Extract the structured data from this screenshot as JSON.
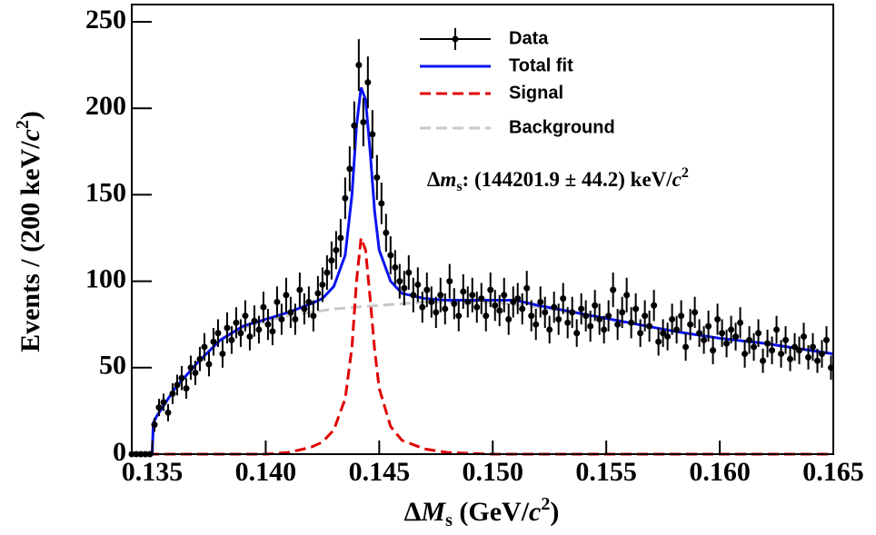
{
  "chart_data": {
    "type": "line",
    "xlim": [
      0.1341,
      0.165
    ],
    "ylim": [
      0,
      260
    ],
    "xticks": [
      0.135,
      {
        "value": 0.14,
        "label": "0.140"
      },
      0.145,
      {
        "value": 0.15,
        "label": "0.150"
      },
      0.155,
      {
        "value": 0.16,
        "label": "0.160"
      },
      0.165
    ],
    "yticks": [
      0,
      50,
      100,
      150,
      200,
      250
    ],
    "x_label": [
      "Δ",
      "M",
      "s",
      " (GeV/",
      "c",
      "2",
      ")"
    ],
    "y_label": [
      "Events / (200 keV/",
      "c",
      "2",
      ")"
    ],
    "annotation": [
      "Δ",
      "m",
      "s",
      ": (144201.9  ± 44.2) keV/",
      "c",
      "2"
    ],
    "legend": "top-right",
    "series": [
      {
        "name": "Data",
        "color": "#000000",
        "marker": "errorbar",
        "x": [
          0.1341,
          0.1343,
          0.1345,
          0.1347,
          0.1349,
          0.1351,
          0.1353,
          0.1355,
          0.1357,
          0.1359,
          0.1361,
          0.1363,
          0.1365,
          0.1367,
          0.1369,
          0.1371,
          0.1373,
          0.1375,
          0.1377,
          0.1379,
          0.1381,
          0.1383,
          0.1385,
          0.1387,
          0.1389,
          0.1391,
          0.1393,
          0.1395,
          0.1397,
          0.1399,
          0.1401,
          0.1403,
          0.1405,
          0.1407,
          0.1409,
          0.1411,
          0.1413,
          0.1415,
          0.1417,
          0.1419,
          0.1421,
          0.1423,
          0.1425,
          0.1427,
          0.1429,
          0.1431,
          0.1433,
          0.1435,
          0.1437,
          0.1439,
          0.1441,
          0.1443,
          0.1445,
          0.1447,
          0.1449,
          0.1451,
          0.1453,
          0.1455,
          0.1457,
          0.1459,
          0.1461,
          0.1463,
          0.1465,
          0.1467,
          0.1469,
          0.1471,
          0.1473,
          0.1475,
          0.1477,
          0.1479,
          0.1481,
          0.1483,
          0.1485,
          0.1487,
          0.1489,
          0.1491,
          0.1493,
          0.1495,
          0.1497,
          0.1499,
          0.1501,
          0.1503,
          0.1505,
          0.1507,
          0.1509,
          0.1511,
          0.1513,
          0.1515,
          0.1517,
          0.1519,
          0.1521,
          0.1523,
          0.1525,
          0.1527,
          0.1529,
          0.1531,
          0.1533,
          0.1535,
          0.1537,
          0.1539,
          0.1541,
          0.1543,
          0.1545,
          0.1547,
          0.1549,
          0.1551,
          0.1553,
          0.1555,
          0.1557,
          0.1559,
          0.1561,
          0.1563,
          0.1565,
          0.1567,
          0.1569,
          0.1571,
          0.1573,
          0.1575,
          0.1577,
          0.1579,
          0.1581,
          0.1583,
          0.1585,
          0.1587,
          0.1589,
          0.1591,
          0.1593,
          0.1595,
          0.1597,
          0.1599,
          0.1601,
          0.1603,
          0.1605,
          0.1607,
          0.1609,
          0.1611,
          0.1613,
          0.1615,
          0.1617,
          0.1619,
          0.1621,
          0.1623,
          0.1625,
          0.1627,
          0.1629,
          0.1631,
          0.1633,
          0.1635,
          0.1637,
          0.1639,
          0.1641,
          0.1643,
          0.1645,
          0.1647,
          0.1649
        ],
        "values": [
          0,
          0,
          0,
          0,
          0,
          17,
          27,
          30,
          24,
          35,
          40,
          44,
          38,
          50,
          47,
          55,
          62,
          52,
          65,
          70,
          58,
          73,
          66,
          76,
          70,
          80,
          68,
          77,
          72,
          85,
          75,
          71,
          88,
          78,
          92,
          82,
          78,
          95,
          84,
          88,
          80,
          93,
          98,
          105,
          112,
          118,
          125,
          148,
          165,
          190,
          225,
          192,
          215,
          185,
          160,
          145,
          128,
          115,
          108,
          100,
          96,
          105,
          92,
          98,
          85,
          95,
          88,
          82,
          92,
          84,
          100,
          87,
          80,
          94,
          88,
          92,
          85,
          90,
          80,
          95,
          86,
          83,
          92,
          78,
          88,
          90,
          84,
          96,
          80,
          75,
          88,
          82,
          72,
          85,
          78,
          90,
          76,
          82,
          70,
          84,
          80,
          74,
          86,
          78,
          72,
          80,
          95,
          75,
          82,
          92,
          76,
          84,
          70,
          80,
          74,
          86,
          65,
          70,
          68,
          78,
          72,
          80,
          62,
          75,
          82,
          70,
          66,
          74,
          60,
          78,
          70,
          64,
          72,
          68,
          76,
          58,
          66,
          62,
          70,
          54,
          64,
          60,
          72,
          58,
          66,
          55,
          62,
          60,
          68,
          56,
          62,
          54,
          58,
          66,
          50
        ],
        "errors": [
          0,
          0,
          0,
          0,
          0,
          4,
          5,
          5,
          5,
          6,
          6,
          7,
          6,
          7,
          7,
          7,
          8,
          7,
          8,
          8,
          8,
          9,
          8,
          9,
          8,
          9,
          8,
          9,
          8,
          9,
          9,
          8,
          9,
          9,
          10,
          9,
          9,
          10,
          9,
          9,
          9,
          10,
          10,
          10,
          11,
          11,
          11,
          12,
          13,
          14,
          15,
          14,
          15,
          14,
          13,
          12,
          11,
          11,
          10,
          10,
          10,
          10,
          10,
          10,
          9,
          10,
          9,
          9,
          10,
          9,
          10,
          9,
          9,
          10,
          9,
          10,
          9,
          9,
          9,
          10,
          9,
          9,
          10,
          9,
          9,
          9,
          9,
          10,
          9,
          9,
          9,
          9,
          8,
          9,
          9,
          9,
          9,
          9,
          8,
          9,
          9,
          9,
          9,
          9,
          8,
          9,
          10,
          9,
          9,
          10,
          9,
          9,
          8,
          9,
          9,
          9,
          8,
          8,
          8,
          9,
          8,
          9,
          8,
          9,
          9,
          8,
          8,
          9,
          8,
          9,
          8,
          8,
          8,
          8,
          9,
          8,
          8,
          8,
          8,
          7,
          8,
          8,
          8,
          8,
          8,
          7,
          8,
          8,
          8,
          7,
          8,
          7,
          8,
          8,
          7
        ]
      },
      {
        "name": "Total fit",
        "color": "#0a14f0",
        "dashed": false,
        "x": [
          0.1341,
          0.1349,
          0.135,
          0.13505,
          0.1352,
          0.136,
          0.137,
          0.138,
          0.139,
          0.14,
          0.141,
          0.142,
          0.1425,
          0.143,
          0.1435,
          0.1438,
          0.144,
          0.1442,
          0.1444,
          0.1446,
          0.1448,
          0.145,
          0.1455,
          0.146,
          0.147,
          0.148,
          0.15,
          0.151,
          0.152,
          0.154,
          0.156,
          0.158,
          0.16,
          0.162,
          0.165
        ],
        "values": [
          0,
          0,
          0,
          18,
          22,
          38,
          53,
          66,
          74,
          78,
          82,
          87,
          90,
          97,
          115,
          150,
          190,
          212,
          205,
          175,
          140,
          118,
          100,
          93,
          90,
          89,
          89,
          89,
          86,
          81,
          76,
          71,
          67,
          64,
          58
        ]
      },
      {
        "name": "Signal",
        "color": "#e00000",
        "dashed": true,
        "x": [
          0.1341,
          0.14,
          0.141,
          0.142,
          0.1425,
          0.143,
          0.1435,
          0.1438,
          0.144,
          0.1442,
          0.1444,
          0.1446,
          0.1448,
          0.145,
          0.1455,
          0.146,
          0.147,
          0.148,
          0.15,
          0.165
        ],
        "values": [
          0,
          0,
          1,
          4,
          7,
          14,
          32,
          62,
          100,
          125,
          118,
          90,
          60,
          38,
          16,
          8,
          3,
          1,
          0,
          0
        ]
      },
      {
        "name": "Background",
        "color": "#c8c8c8",
        "dashed": true,
        "x": [
          0.1341,
          0.1349,
          0.135,
          0.13505,
          0.1352,
          0.136,
          0.137,
          0.138,
          0.139,
          0.14,
          0.141,
          0.142,
          0.143,
          0.144,
          0.145,
          0.146,
          0.147,
          0.148,
          0.15,
          0.152,
          0.154,
          0.156,
          0.158,
          0.16,
          0.162,
          0.165
        ],
        "values": [
          0,
          0,
          0,
          18,
          22,
          38,
          53,
          66,
          73,
          77,
          80,
          82,
          84,
          85,
          86,
          87,
          88,
          88,
          88,
          85,
          81,
          76,
          71,
          67,
          64,
          58
        ]
      }
    ]
  }
}
